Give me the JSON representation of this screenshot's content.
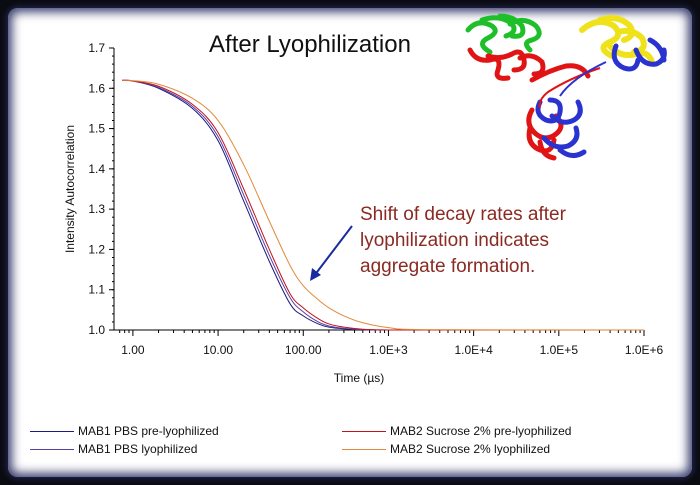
{
  "chart_data": {
    "type": "line",
    "title": "After Lyophilization",
    "xlabel": "Time (µs)",
    "ylabel": "Intensity Autocorrelation",
    "xscale": "log",
    "xlim": [
      0.6,
      1000000
    ],
    "ylim": [
      1.0,
      1.7
    ],
    "x_ticks": [
      1,
      10,
      100,
      1000,
      10000,
      100000,
      1000000
    ],
    "x_tick_labels": [
      "1.00",
      "10.00",
      "100.00",
      "1.0E+3",
      "1.0E+4",
      "1.0E+5",
      "1.0E+6"
    ],
    "y_ticks": [
      1.0,
      1.1,
      1.2,
      1.3,
      1.4,
      1.5,
      1.6,
      1.7
    ],
    "y_tick_labels": [
      "1.0",
      "1.1",
      "1.2",
      "1.3",
      "1.4",
      "1.5",
      "1.6",
      "1.7"
    ],
    "grid": false,
    "legend_position": "bottom",
    "x": [
      0.75,
      1,
      2,
      5,
      10,
      20,
      40,
      70,
      100,
      150,
      200,
      300,
      500,
      1000,
      3000,
      1000000
    ],
    "series": [
      {
        "name": "MAB1 PBS pre-lyophilized",
        "color": "#1a1a80",
        "values": [
          1.62,
          1.618,
          1.6,
          1.55,
          1.47,
          1.32,
          1.17,
          1.065,
          1.035,
          1.015,
          1.007,
          1.003,
          1.001,
          1.0,
          1.0,
          1.0
        ]
      },
      {
        "name": "MAB1 PBS lyophilized",
        "color": "#5a3fa8",
        "values": [
          1.62,
          1.618,
          1.602,
          1.555,
          1.48,
          1.335,
          1.185,
          1.08,
          1.045,
          1.02,
          1.01,
          1.004,
          1.001,
          1.0,
          1.0,
          1.0
        ]
      },
      {
        "name": "MAB2 Sucrose 2% pre-lyophilized",
        "color": "#c0141c",
        "values": [
          1.62,
          1.618,
          1.605,
          1.56,
          1.49,
          1.35,
          1.2,
          1.09,
          1.055,
          1.028,
          1.015,
          1.007,
          1.002,
          1.0,
          1.0,
          1.0
        ]
      },
      {
        "name": "MAB2 Sucrose 2% lyophilized",
        "color": "#e08a3a",
        "values": [
          1.62,
          1.619,
          1.61,
          1.575,
          1.52,
          1.41,
          1.27,
          1.16,
          1.11,
          1.075,
          1.055,
          1.035,
          1.018,
          1.006,
          1.001,
          1.0
        ]
      }
    ],
    "annotation": {
      "text_lines": [
        "Shift of decay rates after",
        "lyophilization indicates",
        "aggregate formation."
      ],
      "color": "#8a2a22",
      "arrow_color": "#1a2aa0"
    }
  }
}
